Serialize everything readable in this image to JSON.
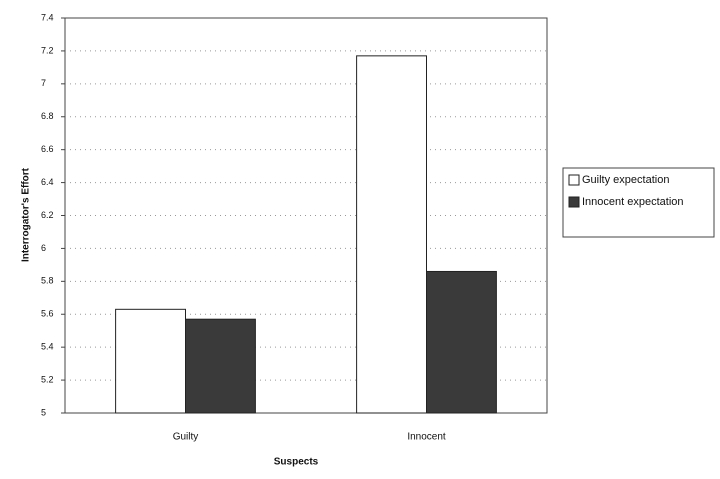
{
  "chart_data": {
    "type": "bar",
    "x_label": "Suspects",
    "y_label": "Interrogator's Effort",
    "categories": [
      "Guilty",
      "Innocent"
    ],
    "series": [
      {
        "name": "Guilty expectation",
        "color": "#ffffff",
        "values": [
          5.63,
          7.17
        ]
      },
      {
        "name": "Innocent expectation",
        "color": "#3a3a3a",
        "values": [
          5.57,
          5.86
        ]
      }
    ],
    "ylim": [
      5,
      7.4
    ],
    "yticks": [
      5,
      5.2,
      5.4,
      5.6,
      5.8,
      6,
      6.2,
      6.4,
      6.6,
      6.8,
      7,
      7.2,
      7.4
    ],
    "grid": true,
    "legend": "right"
  }
}
